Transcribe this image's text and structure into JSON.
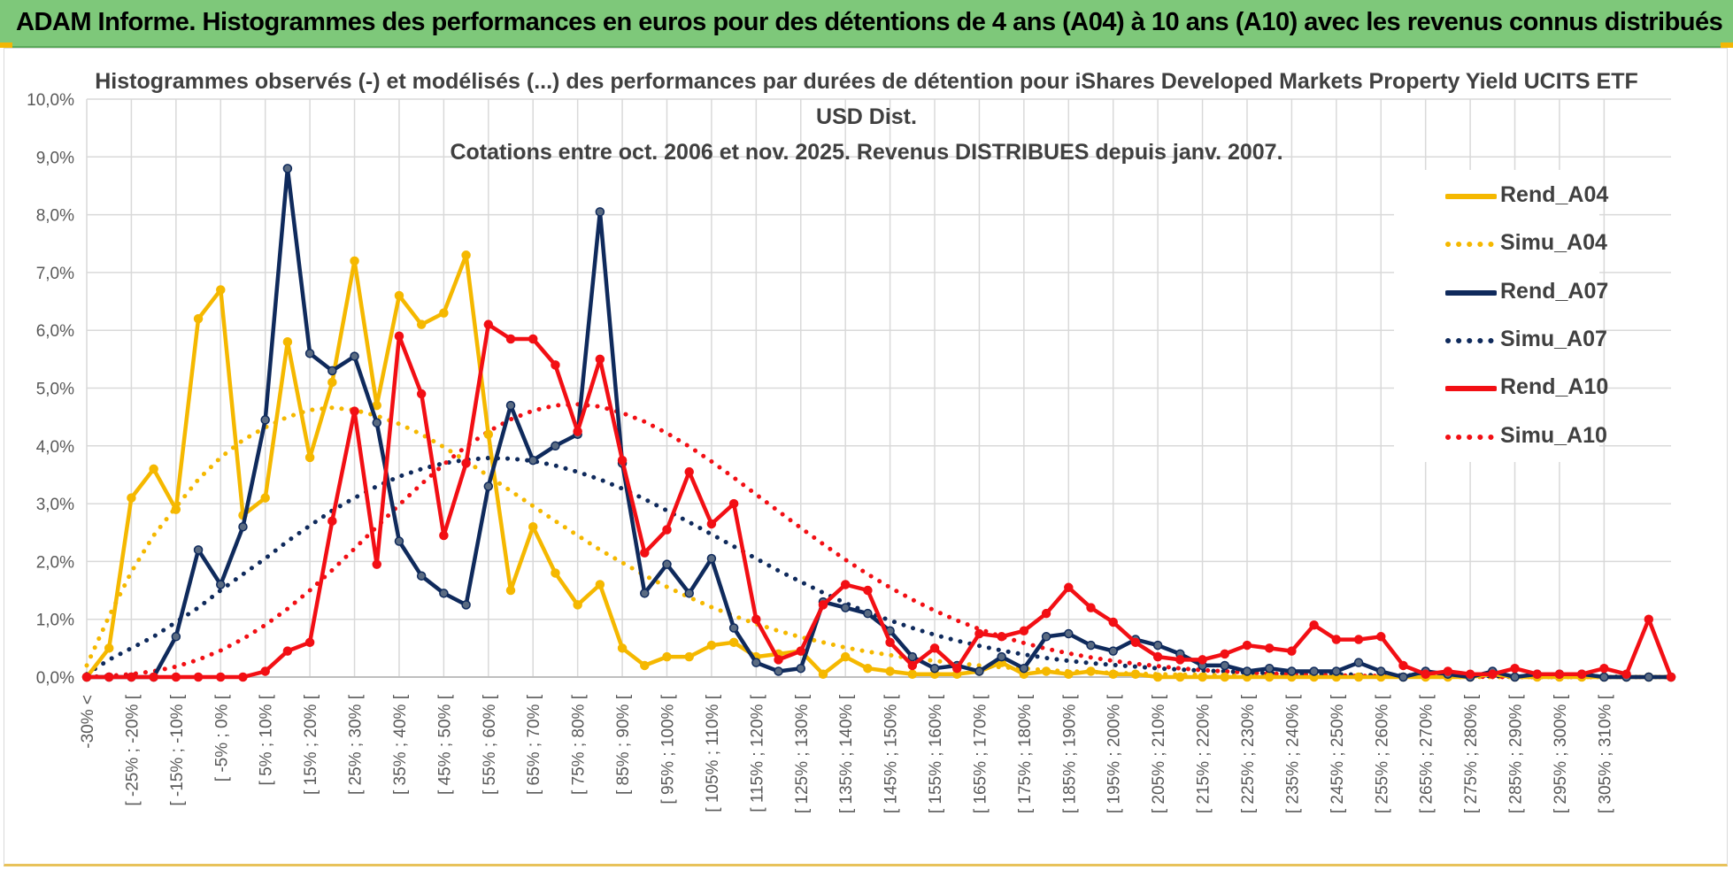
{
  "banner": {
    "title": "ADAM Informe. Histogrammes des performances en euros pour des détentions de 4 ans (A04) à 10 ans (A10) avec les revenus connus distribués"
  },
  "colors": {
    "banner_bg": "#7ec87a",
    "A04": "#f5b800",
    "A07": "#0f2a5c",
    "A10": "#f20f14",
    "grid": "#d9d9d9",
    "text": "#404040"
  },
  "chart_data": {
    "type": "line",
    "title_lines": [
      "Histogrammes observés (-) et modélisés (...) des performances par durées de détention pour iShares Developed Markets Property Yield UCITS ETF",
      "USD Dist.",
      "Cotations entre oct. 2006 et nov. 2025. Revenus DISTRIBUES depuis janv. 2007."
    ],
    "xlabel": "",
    "ylabel": "",
    "ylim": [
      0,
      10
    ],
    "y_unit": "%",
    "y_ticks": [
      "0,0%",
      "1,0%",
      "2,0%",
      "3,0%",
      "4,0%",
      "5,0%",
      "6,0%",
      "7,0%",
      "8,0%",
      "9,0%",
      "10,0%"
    ],
    "grid": true,
    "legend_position": "right",
    "category_labels": [
      "-30% <",
      "[ -25% ; -20% [",
      "[ -15% ; -10% [",
      "[ -5% ; 0% [",
      "[ 5% ; 10% [",
      "[ 15% ; 20% [",
      "[ 25% ; 30% [",
      "[ 35% ; 40% [",
      "[ 45% ; 50% [",
      "[ 55% ; 60% [",
      "[ 65% ; 70% [",
      "[ 75% ; 80% [",
      "[ 85% ; 90% [",
      "[ 95% ; 100% [",
      "[ 105% ; 110% [",
      "[ 115% ; 120% [",
      "[ 125% ; 130% [",
      "[ 135% ; 140% [",
      "[ 145% ; 150% [",
      "[ 155% ; 160% [",
      "[ 165% ; 170% [",
      "[ 175% ; 180% [",
      "[ 185% ; 190% [",
      "[ 195% ; 200% [",
      "[ 205% ; 210% [",
      "[ 215% ; 220% [",
      "[ 225% ; 230% [",
      "[ 235% ; 240% [",
      "[ 245% ; 250% [",
      "[ 255% ; 260% [",
      "[ 265% ; 270% [",
      "[ 275% ; 280% [",
      "[ 285% ; 290% [",
      "[ 295% ; 300% [",
      "[ 305% ; 310% ["
    ],
    "series": [
      {
        "name": "Rend_A04",
        "style": "solid",
        "color": "#f5b800",
        "values": [
          0.0,
          0.5,
          3.1,
          3.6,
          2.9,
          6.2,
          6.7,
          2.8,
          3.1,
          5.8,
          3.8,
          5.1,
          7.2,
          4.7,
          6.6,
          6.1,
          6.3,
          7.3,
          4.2,
          1.5,
          2.6,
          1.8,
          1.25,
          1.6,
          0.5,
          0.2,
          0.35,
          0.35,
          0.55,
          0.6,
          0.35,
          0.4,
          0.45,
          0.05,
          0.35,
          0.15,
          0.1,
          0.05,
          0.05,
          0.05,
          0.1,
          0.25,
          0.05,
          0.1,
          0.05,
          0.1,
          0.05,
          0.05,
          0.0,
          0.0,
          0.0,
          0.0,
          0.0,
          0.0,
          0.0,
          0.0,
          0.0,
          0.0,
          0.0,
          0.0,
          0.0,
          0.0,
          0.0,
          0.05,
          0.0,
          0.0,
          0.0,
          0.0,
          0.0,
          0.0,
          0.0,
          0.0
        ]
      },
      {
        "name": "Simu_A04",
        "style": "dotted",
        "color": "#f5b800",
        "values": [
          0.2,
          1.05,
          1.82,
          2.45,
          2.94,
          3.42,
          3.8,
          4.1,
          4.32,
          4.5,
          4.62,
          4.66,
          4.62,
          4.52,
          4.38,
          4.2,
          3.98,
          3.74,
          3.48,
          3.22,
          2.96,
          2.7,
          2.45,
          2.2,
          1.98,
          1.76,
          1.56,
          1.38,
          1.21,
          1.06,
          0.92,
          0.8,
          0.69,
          0.6,
          0.51,
          0.44,
          0.38,
          0.32,
          0.28,
          0.24,
          0.2,
          0.17,
          0.15,
          0.12,
          0.1,
          0.09,
          0.07,
          0.06,
          0.05,
          0.04,
          0.04,
          0.03,
          0.03,
          0.02,
          0.02,
          0.01,
          0.01,
          0.01,
          0.01,
          0.01,
          0.01,
          0.0,
          0.0,
          0.0,
          0.0,
          0.0,
          0.0,
          0.0,
          0.0,
          0.0,
          0.0,
          0.0
        ]
      },
      {
        "name": "Rend_A07",
        "style": "solid",
        "color": "#0f2a5c",
        "values": [
          0.0,
          0.0,
          0.0,
          0.0,
          0.7,
          2.2,
          1.6,
          2.6,
          4.45,
          8.8,
          5.6,
          5.3,
          5.55,
          4.4,
          2.35,
          1.75,
          1.45,
          1.25,
          3.3,
          4.7,
          3.75,
          4.0,
          4.2,
          8.05,
          3.7,
          1.45,
          1.95,
          1.45,
          2.05,
          0.85,
          0.25,
          0.1,
          0.15,
          1.3,
          1.2,
          1.1,
          0.8,
          0.35,
          0.15,
          0.2,
          0.1,
          0.35,
          0.15,
          0.7,
          0.75,
          0.55,
          0.45,
          0.65,
          0.55,
          0.4,
          0.2,
          0.2,
          0.1,
          0.15,
          0.1,
          0.1,
          0.1,
          0.25,
          0.1,
          0.0,
          0.1,
          0.05,
          0.0,
          0.1,
          0.0,
          0.05,
          0.05,
          0.05,
          0.0,
          0.0,
          0.0,
          0.0
        ]
      },
      {
        "name": "Simu_A07",
        "style": "dotted",
        "color": "#0f2a5c",
        "values": [
          0.05,
          0.3,
          0.5,
          0.7,
          0.95,
          1.2,
          1.5,
          1.78,
          2.05,
          2.35,
          2.62,
          2.88,
          3.1,
          3.3,
          3.47,
          3.6,
          3.7,
          3.76,
          3.79,
          3.78,
          3.74,
          3.66,
          3.55,
          3.42,
          3.26,
          3.08,
          2.88,
          2.68,
          2.47,
          2.26,
          2.05,
          1.84,
          1.65,
          1.46,
          1.28,
          1.12,
          0.98,
          0.85,
          0.73,
          0.63,
          0.54,
          0.46,
          0.39,
          0.33,
          0.28,
          0.24,
          0.21,
          0.18,
          0.15,
          0.13,
          0.11,
          0.1,
          0.08,
          0.07,
          0.06,
          0.05,
          0.05,
          0.04,
          0.03,
          0.03,
          0.03,
          0.02,
          0.02,
          0.02,
          0.01,
          0.01,
          0.01,
          0.01,
          0.01,
          0.0,
          0.0,
          0.0
        ]
      },
      {
        "name": "Rend_A10",
        "style": "solid",
        "color": "#f20f14",
        "values": [
          0.0,
          0.0,
          0.0,
          0.0,
          0.0,
          0.0,
          0.0,
          0.0,
          0.1,
          0.45,
          0.6,
          2.7,
          4.6,
          1.95,
          5.9,
          4.9,
          2.45,
          3.7,
          6.1,
          5.85,
          5.85,
          5.4,
          4.25,
          5.5,
          3.75,
          2.15,
          2.55,
          3.55,
          2.65,
          3.0,
          1.0,
          0.3,
          0.45,
          1.25,
          1.6,
          1.5,
          0.6,
          0.2,
          0.5,
          0.15,
          0.75,
          0.7,
          0.8,
          1.1,
          1.55,
          1.2,
          0.95,
          0.6,
          0.35,
          0.3,
          0.3,
          0.4,
          0.55,
          0.5,
          0.45,
          0.9,
          0.65,
          0.65,
          0.7,
          0.2,
          0.05,
          0.1,
          0.05,
          0.05,
          0.15,
          0.05,
          0.05,
          0.05,
          0.15,
          0.05,
          1.0,
          0.0
        ]
      },
      {
        "name": "Simu_A10",
        "style": "dotted",
        "color": "#f20f14",
        "values": [
          0.0,
          0.02,
          0.05,
          0.1,
          0.18,
          0.3,
          0.46,
          0.66,
          0.9,
          1.18,
          1.5,
          1.85,
          2.22,
          2.6,
          2.98,
          3.34,
          3.68,
          3.99,
          4.25,
          4.46,
          4.61,
          4.7,
          4.72,
          4.68,
          4.57,
          4.42,
          4.22,
          3.99,
          3.73,
          3.45,
          3.16,
          2.87,
          2.58,
          2.3,
          2.03,
          1.78,
          1.55,
          1.34,
          1.15,
          0.98,
          0.83,
          0.7,
          0.59,
          0.49,
          0.41,
          0.34,
          0.28,
          0.23,
          0.19,
          0.15,
          0.12,
          0.1,
          0.08,
          0.06,
          0.05,
          0.04,
          0.03,
          0.02,
          0.02,
          0.01,
          0.01,
          0.01,
          0.01,
          0.0,
          0.0,
          0.0,
          0.0,
          0.0,
          0.0,
          0.0,
          0.0,
          0.0
        ]
      }
    ]
  }
}
